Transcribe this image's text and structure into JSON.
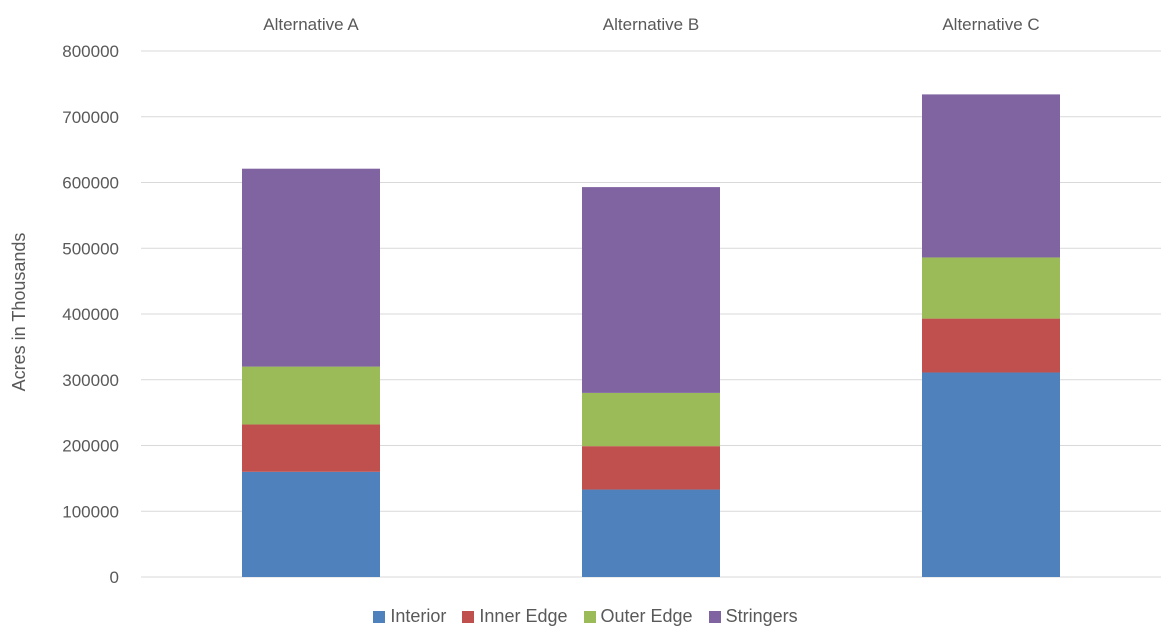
{
  "chart_data": {
    "type": "bar",
    "stacked": true,
    "categories": [
      "Alternative A",
      "Alternative B",
      "Alternative C"
    ],
    "category_label_position": "top",
    "series": [
      {
        "name": "Interior",
        "color": "#4f81bd",
        "values": [
          160000,
          133000,
          311000
        ]
      },
      {
        "name": "Inner Edge",
        "color": "#c0504d",
        "values": [
          72000,
          66000,
          82000
        ]
      },
      {
        "name": "Outer Edge",
        "color": "#9bbb59",
        "values": [
          88000,
          81000,
          93000
        ]
      },
      {
        "name": "Stringers",
        "color": "#8064a2",
        "values": [
          301000,
          313000,
          248000
        ]
      }
    ],
    "ylabel": "Acres in Thousands",
    "xlabel": "",
    "ylim": [
      0,
      800000
    ],
    "yticks": [
      "0",
      "100000",
      "200000",
      "300000",
      "400000",
      "500000",
      "600000",
      "700000",
      "800000"
    ],
    "grid": true,
    "legend_position": "bottom"
  }
}
